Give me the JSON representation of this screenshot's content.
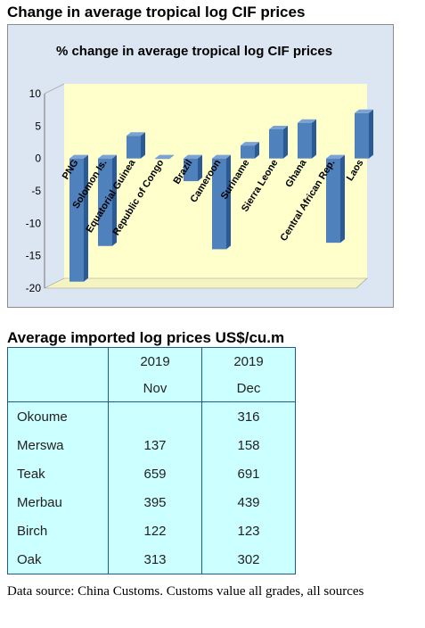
{
  "section1_title": "Change in average tropical log CIF prices",
  "section2_title": "Average imported log prices US$/cu.m",
  "chart_data": {
    "type": "bar",
    "title": "% change in average tropical log CIF prices",
    "categories": [
      "PNG",
      "Solomon Is.",
      "Equatorial Guinea",
      "Republic of Congo",
      "Brazil",
      "Cameroon",
      "Suriname",
      "Sierra Leone",
      "Ghana",
      "Central African Rep.",
      "Laos"
    ],
    "values": [
      -19,
      -13.5,
      3.5,
      0,
      -3.5,
      -14,
      2,
      4.5,
      5.5,
      -13,
      7
    ],
    "ylim": [
      -20,
      10
    ],
    "yticks": [
      10,
      5,
      0,
      -5,
      -10,
      -15,
      -20
    ],
    "grid": false,
    "style": "3d",
    "colors": {
      "bar_front": "#4f81bd",
      "bar_side": "#2c5a94",
      "bar_top": "#7aa2d4",
      "plot_bg": "#ffffcc",
      "outer_bg": "#dce6f2"
    }
  },
  "table": {
    "header_row1": [
      "",
      "2019",
      "2019"
    ],
    "header_row2": [
      "",
      "Nov",
      "Dec"
    ],
    "rows": [
      {
        "name": "Okoume",
        "nov": "",
        "dec": "316"
      },
      {
        "name": "Merswa",
        "nov": "137",
        "dec": "158"
      },
      {
        "name": "Teak",
        "nov": "659",
        "dec": "691"
      },
      {
        "name": "Merbau",
        "nov": "395",
        "dec": "439"
      },
      {
        "name": "Birch",
        "nov": "122",
        "dec": "123"
      },
      {
        "name": "Oak",
        "nov": "313",
        "dec": "302"
      }
    ]
  },
  "source_note": "Data source: China Customs. Customs value all grades, all sources"
}
